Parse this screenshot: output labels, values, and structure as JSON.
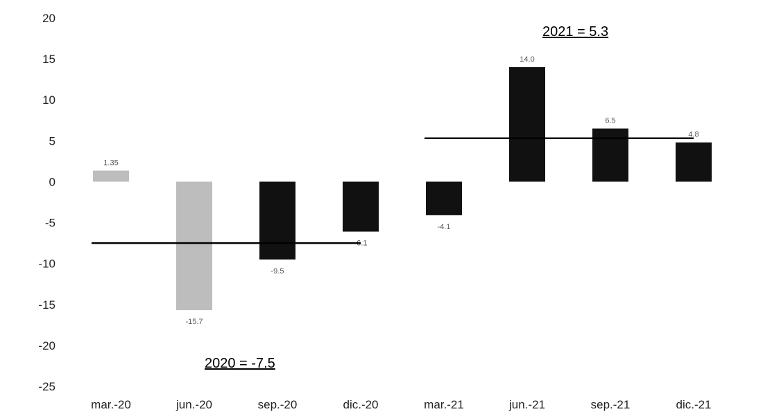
{
  "chart_data": {
    "type": "bar",
    "categories": [
      "mar.-20",
      "jun.-20",
      "sep.-20",
      "dic.-20",
      "mar.-21",
      "jun.-21",
      "sep.-21",
      "dic.-21"
    ],
    "values": [
      1.35,
      -15.7,
      -9.5,
      -6.1,
      -4.1,
      14.0,
      6.5,
      4.8
    ],
    "data_labels": [
      "1.35",
      "-15.7",
      "-9.5",
      "-6.1",
      "-4.1",
      "14.0",
      "6.5",
      "4.8"
    ],
    "bar_colors": [
      "#bdbdbd",
      "#bdbdbd",
      "#111111",
      "#111111",
      "#111111",
      "#111111",
      "#111111",
      "#111111"
    ],
    "ylim": [
      -25,
      20
    ],
    "yticks": [
      20,
      15,
      10,
      5,
      0,
      -5,
      -10,
      -15,
      -20,
      -25
    ],
    "grid": false,
    "legend": "none",
    "annotations": [
      {
        "text": "2021 = 5.3"
      },
      {
        "text": "2020 = -7.5"
      }
    ],
    "average_lines": [
      {
        "year": "2020",
        "value": -7.5,
        "from_category": "mar.-20",
        "to_category": "dic.-20"
      },
      {
        "year": "2021",
        "value": 5.3,
        "from_category": "mar.-21",
        "to_category": "dic.-21"
      }
    ]
  }
}
